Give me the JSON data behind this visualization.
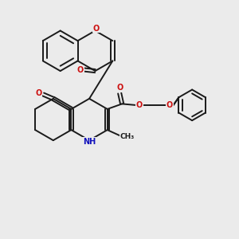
{
  "bg_color": "#ebebeb",
  "bond_color": "#1a1a1a",
  "bond_width": 1.4,
  "N_color": "#1010bb",
  "O_color": "#cc1010",
  "figsize": [
    3.0,
    3.0
  ],
  "dpi": 100,
  "xlim": [
    0,
    10
  ],
  "ylim": [
    0,
    10
  ]
}
